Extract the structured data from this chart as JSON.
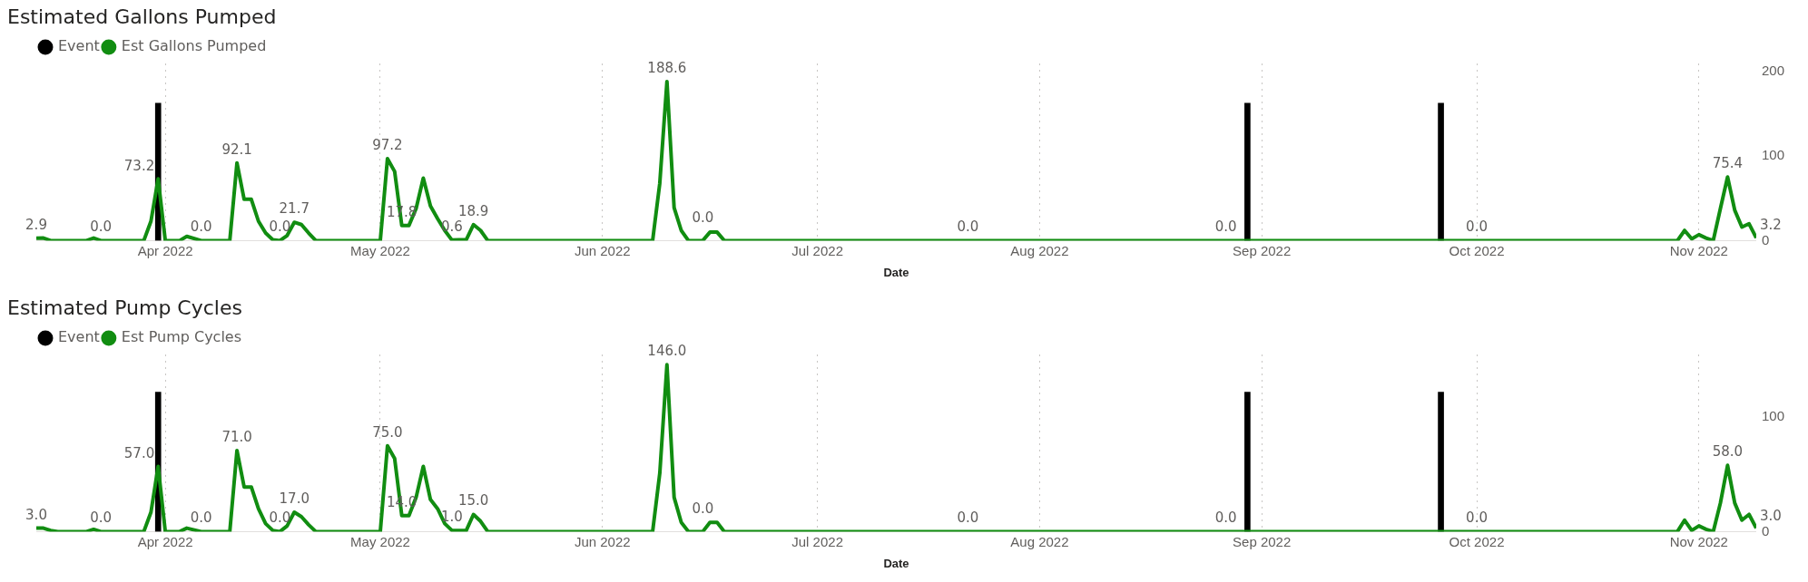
{
  "chart_data": [
    {
      "type": "line",
      "title": "Estimated Gallons Pumped",
      "xlabel": "Date",
      "legend": "top left",
      "grid": "x",
      "xlim": [
        "2022-03-14",
        "2022-11-09"
      ],
      "xticks": [
        {
          "value": "2022-04-01",
          "label": "Apr 2022"
        },
        {
          "value": "2022-05-01",
          "label": "May 2022"
        },
        {
          "value": "2022-06-01",
          "label": "Jun 2022"
        },
        {
          "value": "2022-07-01",
          "label": "Jul 2022"
        },
        {
          "value": "2022-08-01",
          "label": "Aug 2022"
        },
        {
          "value": "2022-09-01",
          "label": "Sep 2022"
        },
        {
          "value": "2022-10-01",
          "label": "Oct 2022"
        },
        {
          "value": "2022-11-01",
          "label": "Nov 2022"
        }
      ],
      "ylim": [
        0,
        210
      ],
      "yticks": [
        0,
        100,
        200
      ],
      "series": [
        {
          "name": "Event",
          "type": "bar",
          "color": "#000000",
          "x": [
            "2022-03-31",
            "2022-08-30",
            "2022-09-26"
          ],
          "values": [
            163,
            163,
            163
          ]
        },
        {
          "name": "Est Gallons Pumped",
          "color": "#118d11",
          "x": [
            "2022-03-14",
            "2022-03-15",
            "2022-03-16",
            "2022-03-21",
            "2022-03-22",
            "2022-03-23",
            "2022-03-29",
            "2022-03-30",
            "2022-03-31",
            "2022-04-01",
            "2022-04-03",
            "2022-04-04",
            "2022-04-06",
            "2022-04-10",
            "2022-04-11",
            "2022-04-12",
            "2022-04-13",
            "2022-04-14",
            "2022-04-15",
            "2022-04-16",
            "2022-04-17",
            "2022-04-18",
            "2022-04-19",
            "2022-04-20",
            "2022-04-21",
            "2022-04-22",
            "2022-05-01",
            "2022-05-02",
            "2022-05-03",
            "2022-05-04",
            "2022-05-05",
            "2022-05-06",
            "2022-05-07",
            "2022-05-08",
            "2022-05-09",
            "2022-05-10",
            "2022-05-11",
            "2022-05-12",
            "2022-05-13",
            "2022-05-14",
            "2022-05-15",
            "2022-05-16",
            "2022-06-08",
            "2022-06-09",
            "2022-06-10",
            "2022-06-11",
            "2022-06-12",
            "2022-06-13",
            "2022-06-15",
            "2022-06-16",
            "2022-06-17",
            "2022-06-18",
            "2022-07-22",
            "2022-08-27",
            "2022-10-01",
            "2022-10-29",
            "2022-10-30",
            "2022-10-31",
            "2022-11-01",
            "2022-11-02",
            "2022-11-03",
            "2022-11-04",
            "2022-11-05",
            "2022-11-06",
            "2022-11-07",
            "2022-11-08",
            "2022-11-09"
          ],
          "values": [
            2.9,
            3,
            0,
            0,
            3,
            0,
            0,
            23,
            73.2,
            0,
            0,
            5,
            0,
            0,
            92.1,
            49,
            49,
            23,
            9,
            1,
            0,
            6,
            21.7,
            19,
            9,
            0,
            0,
            97.2,
            82,
            17.8,
            18,
            38,
            74,
            41,
            26,
            12,
            0.6,
            1,
            1,
            18.9,
            12,
            0,
            0,
            68,
            188.6,
            39,
            12,
            0,
            0,
            10,
            10,
            0,
            0,
            0,
            0,
            0,
            12,
            2,
            7,
            3,
            0,
            38,
            75.4,
            36,
            16,
            20,
            3.2
          ],
          "value_labels": [
            "2.9",
            null,
            null,
            null,
            null,
            "0.0",
            null,
            null,
            "73.2",
            null,
            null,
            null,
            "0.0",
            null,
            "92.1",
            null,
            null,
            null,
            null,
            null,
            "0.0",
            null,
            "21.7",
            null,
            null,
            null,
            null,
            "97.2",
            null,
            "17.8",
            null,
            null,
            null,
            null,
            null,
            null,
            "0.6",
            null,
            null,
            "18.9",
            null,
            null,
            null,
            null,
            "188.6",
            null,
            null,
            "0.0",
            null,
            null,
            null,
            null,
            "0.0",
            "0.0",
            "0.0",
            null,
            null,
            null,
            null,
            null,
            null,
            null,
            "75.4",
            null,
            null,
            null,
            "3.2"
          ]
        }
      ]
    },
    {
      "type": "line",
      "title": "Estimated Pump Cycles",
      "xlabel": "Date",
      "legend": "top left",
      "grid": "x",
      "xlim": [
        "2022-03-14",
        "2022-11-09"
      ],
      "xticks": [
        {
          "value": "2022-04-01",
          "label": "Apr 2022"
        },
        {
          "value": "2022-05-01",
          "label": "May 2022"
        },
        {
          "value": "2022-06-01",
          "label": "Jun 2022"
        },
        {
          "value": "2022-07-01",
          "label": "Jul 2022"
        },
        {
          "value": "2022-08-01",
          "label": "Aug 2022"
        },
        {
          "value": "2022-09-01",
          "label": "Sep 2022"
        },
        {
          "value": "2022-10-01",
          "label": "Oct 2022"
        },
        {
          "value": "2022-11-01",
          "label": "Nov 2022"
        }
      ],
      "ylim": [
        0,
        155
      ],
      "yticks": [
        0,
        100
      ],
      "series": [
        {
          "name": "Event",
          "type": "bar",
          "color": "#000000",
          "x": [
            "2022-03-31",
            "2022-08-30",
            "2022-09-26"
          ],
          "values": [
            122,
            122,
            122
          ]
        },
        {
          "name": "Est Pump Cycles",
          "color": "#118d11",
          "x": [
            "2022-03-14",
            "2022-03-15",
            "2022-03-16",
            "2022-03-17",
            "2022-03-21",
            "2022-03-22",
            "2022-03-23",
            "2022-03-29",
            "2022-03-30",
            "2022-03-31",
            "2022-04-01",
            "2022-04-03",
            "2022-04-04",
            "2022-04-06",
            "2022-04-10",
            "2022-04-11",
            "2022-04-12",
            "2022-04-13",
            "2022-04-14",
            "2022-04-15",
            "2022-04-16",
            "2022-04-17",
            "2022-04-18",
            "2022-04-19",
            "2022-04-20",
            "2022-04-21",
            "2022-04-22",
            "2022-05-01",
            "2022-05-02",
            "2022-05-03",
            "2022-05-04",
            "2022-05-05",
            "2022-05-06",
            "2022-05-07",
            "2022-05-08",
            "2022-05-09",
            "2022-05-10",
            "2022-05-11",
            "2022-05-12",
            "2022-05-13",
            "2022-05-14",
            "2022-05-15",
            "2022-05-16",
            "2022-06-08",
            "2022-06-09",
            "2022-06-10",
            "2022-06-11",
            "2022-06-12",
            "2022-06-13",
            "2022-06-15",
            "2022-06-16",
            "2022-06-17",
            "2022-06-18",
            "2022-07-22",
            "2022-08-27",
            "2022-10-01",
            "2022-10-29",
            "2022-10-30",
            "2022-10-31",
            "2022-11-01",
            "2022-11-02",
            "2022-11-03",
            "2022-11-04",
            "2022-11-05",
            "2022-11-06",
            "2022-11-07",
            "2022-11-08",
            "2022-11-09"
          ],
          "values": [
            3,
            3,
            1,
            0,
            0,
            2,
            0,
            0,
            17,
            57,
            0,
            0,
            3,
            0,
            0,
            71,
            39,
            39,
            20,
            7,
            1,
            0,
            5,
            17,
            13,
            6,
            0,
            0,
            75,
            64,
            14,
            14,
            30,
            57,
            28,
            20,
            7,
            1,
            1,
            1,
            15,
            9,
            0,
            0,
            51,
            146,
            30,
            8,
            0,
            0,
            8,
            8,
            0,
            0,
            0,
            0,
            0,
            10,
            1,
            5,
            2,
            0,
            25,
            58,
            25,
            10,
            15,
            3
          ],
          "value_labels": [
            "3.0",
            null,
            null,
            null,
            null,
            null,
            "0.0",
            null,
            null,
            "57.0",
            null,
            null,
            null,
            "0.0",
            null,
            "71.0",
            null,
            null,
            null,
            null,
            null,
            "0.0",
            null,
            "17.0",
            null,
            null,
            null,
            null,
            "75.0",
            null,
            "14.0",
            null,
            null,
            null,
            null,
            null,
            null,
            "1.0",
            null,
            null,
            "15.0",
            null,
            null,
            null,
            null,
            "146.0",
            null,
            null,
            "0.0",
            null,
            null,
            null,
            null,
            "0.0",
            "0.0",
            "0.0",
            null,
            null,
            null,
            null,
            null,
            null,
            null,
            "58.0",
            null,
            null,
            null,
            "3.0"
          ]
        }
      ]
    }
  ]
}
